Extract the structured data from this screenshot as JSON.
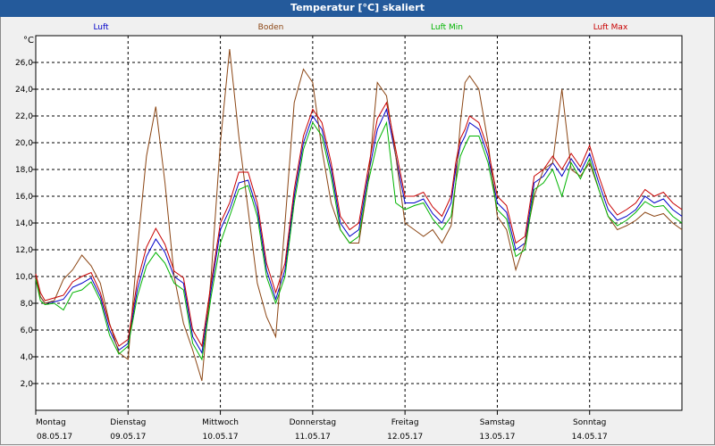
{
  "window": {
    "title": "Temperatur [°C] skaliert"
  },
  "chart_data": {
    "type": "line",
    "title": "Temperatur [°C] skaliert",
    "ylabel": "°C",
    "ylim": [
      0,
      28
    ],
    "yticks": [
      2,
      4,
      6,
      8,
      10,
      12,
      14,
      16,
      18,
      20,
      22,
      24,
      26
    ],
    "ytick_labels": [
      "2,0",
      "4,0",
      "6,0",
      "8,0",
      "10,0",
      "12,0",
      "14,0",
      "16,0",
      "18,0",
      "20,0",
      "22,0",
      "24,0",
      "26,0"
    ],
    "xlim": [
      0,
      7
    ],
    "x_labels": [
      {
        "day": "Montag",
        "date": "08.05.17"
      },
      {
        "day": "Dienstag",
        "date": "09.05.17"
      },
      {
        "day": "Mittwoch",
        "date": "10.05.17"
      },
      {
        "day": "Donnerstag",
        "date": "11.05.17"
      },
      {
        "day": "Freitag",
        "date": "12.05.17"
      },
      {
        "day": "Samstag",
        "date": "13.05.17"
      },
      {
        "day": "Sonntag",
        "date": "14.05.17"
      }
    ],
    "grid": true,
    "legend_position": "top",
    "series": [
      {
        "name": "Luft",
        "color": "#0000c8",
        "x": [
          0,
          0.05,
          0.1,
          0.2,
          0.3,
          0.4,
          0.5,
          0.6,
          0.7,
          0.8,
          0.9,
          1,
          1.1,
          1.2,
          1.3,
          1.4,
          1.5,
          1.6,
          1.7,
          1.8,
          1.9,
          2,
          2.1,
          2.2,
          2.3,
          2.4,
          2.5,
          2.6,
          2.7,
          2.8,
          2.9,
          3,
          3.1,
          3.2,
          3.3,
          3.4,
          3.5,
          3.6,
          3.7,
          3.8,
          3.9,
          4,
          4.1,
          4.2,
          4.3,
          4.4,
          4.5,
          4.55,
          4.6,
          4.65,
          4.7,
          4.8,
          4.9,
          5,
          5.1,
          5.2,
          5.3,
          5.4,
          5.5,
          5.6,
          5.7,
          5.8,
          5.9,
          6,
          6.1,
          6.2,
          6.3,
          6.4,
          6.5,
          6.6,
          6.7,
          6.8,
          6.9,
          7
        ],
        "y": [
          10,
          8.5,
          8,
          8.1,
          8.3,
          9.2,
          9.5,
          9.9,
          8.5,
          6,
          4.5,
          5,
          9,
          11.5,
          12.8,
          11.8,
          10,
          9.5,
          5.5,
          4.3,
          9,
          13.5,
          15,
          17,
          17.2,
          15,
          10.5,
          8.3,
          10.5,
          16,
          20,
          22,
          21,
          18,
          14,
          13,
          13.5,
          17.5,
          21,
          22.5,
          19,
          15.5,
          15.5,
          15.8,
          14.7,
          14,
          15.5,
          18,
          19.8,
          20.5,
          21.5,
          21,
          19,
          15.5,
          14.8,
          12,
          12.5,
          17,
          17.5,
          18.5,
          17.5,
          18.8,
          17.8,
          19.2,
          17,
          15,
          14.2,
          14.5,
          15,
          16,
          15.5,
          15.8,
          15,
          14.5
        ]
      },
      {
        "name": "Boden",
        "color": "#8b4513",
        "x": [
          0,
          0.05,
          0.1,
          0.2,
          0.3,
          0.4,
          0.5,
          0.6,
          0.7,
          0.8,
          0.9,
          1,
          1.1,
          1.2,
          1.3,
          1.4,
          1.5,
          1.6,
          1.7,
          1.8,
          1.9,
          2,
          2.1,
          2.2,
          2.3,
          2.4,
          2.5,
          2.6,
          2.7,
          2.8,
          2.9,
          3,
          3.1,
          3.2,
          3.3,
          3.4,
          3.5,
          3.6,
          3.7,
          3.8,
          3.9,
          4,
          4.1,
          4.2,
          4.3,
          4.4,
          4.5,
          4.55,
          4.6,
          4.65,
          4.7,
          4.8,
          4.9,
          5,
          5.1,
          5.2,
          5.3,
          5.4,
          5.5,
          5.6,
          5.7,
          5.8,
          5.9,
          6,
          6.1,
          6.2,
          6.3,
          6.4,
          6.5,
          6.6,
          6.7,
          6.8,
          6.9,
          7
        ],
        "y": [
          10,
          8.5,
          8,
          8.2,
          9.8,
          10.5,
          11.6,
          10.8,
          9.5,
          6.5,
          4.3,
          3.8,
          12,
          19,
          22.7,
          17,
          10,
          6.5,
          4.5,
          2.2,
          10,
          20,
          27,
          20.5,
          15,
          9.5,
          7,
          5.5,
          14,
          23,
          25.5,
          24.5,
          19.5,
          15.5,
          13.5,
          12.5,
          12.5,
          17,
          24.5,
          23.5,
          19,
          14,
          13.5,
          13,
          13.5,
          12.5,
          13.8,
          17,
          21.5,
          24.5,
          25,
          24,
          20,
          14.5,
          13.5,
          10.5,
          12.5,
          16,
          18,
          18.5,
          24,
          18,
          17.5,
          18.5,
          16.5,
          14.5,
          13.5,
          13.8,
          14.2,
          14.8,
          14.5,
          14.7,
          14,
          13.5
        ]
      },
      {
        "name": "Luft Min",
        "color": "#00b400",
        "x": [
          0,
          0.05,
          0.1,
          0.2,
          0.3,
          0.4,
          0.5,
          0.6,
          0.7,
          0.8,
          0.9,
          1,
          1.1,
          1.2,
          1.3,
          1.4,
          1.5,
          1.6,
          1.7,
          1.8,
          1.9,
          2,
          2.1,
          2.2,
          2.3,
          2.4,
          2.5,
          2.6,
          2.7,
          2.8,
          2.9,
          3,
          3.1,
          3.2,
          3.3,
          3.4,
          3.5,
          3.6,
          3.7,
          3.8,
          3.9,
          4,
          4.1,
          4.2,
          4.3,
          4.4,
          4.5,
          4.55,
          4.6,
          4.65,
          4.7,
          4.8,
          4.9,
          5,
          5.1,
          5.2,
          5.3,
          5.4,
          5.5,
          5.6,
          5.7,
          5.8,
          5.9,
          6,
          6.1,
          6.2,
          6.3,
          6.4,
          6.5,
          6.6,
          6.7,
          6.8,
          6.9,
          7
        ],
        "y": [
          9.8,
          8.2,
          7.9,
          8.0,
          7.5,
          8.8,
          9.0,
          9.6,
          8.2,
          5.6,
          4.2,
          4.8,
          8.5,
          10.8,
          11.8,
          11.0,
          9.5,
          9.0,
          5.0,
          3.8,
          8.5,
          12.5,
          14.5,
          16.5,
          16.8,
          14.5,
          10.0,
          8.0,
          10.0,
          15.5,
          19.5,
          21.5,
          20.5,
          17.5,
          13.5,
          12.5,
          13.0,
          17.0,
          20.0,
          21.5,
          15.5,
          15.0,
          15.3,
          15.5,
          14.3,
          13.5,
          14.5,
          17.0,
          19.0,
          19.8,
          20.5,
          20.5,
          18.5,
          15.0,
          14.3,
          11.5,
          12.0,
          16.5,
          17.0,
          18.0,
          16.0,
          18.5,
          17.3,
          18.8,
          16.5,
          14.5,
          13.8,
          14.2,
          14.8,
          15.6,
          15.2,
          15.3,
          14.5,
          14.0
        ]
      },
      {
        "name": "Luft Max",
        "color": "#c80000",
        "x": [
          0,
          0.05,
          0.1,
          0.2,
          0.3,
          0.4,
          0.5,
          0.6,
          0.7,
          0.8,
          0.9,
          1,
          1.1,
          1.2,
          1.3,
          1.4,
          1.5,
          1.6,
          1.7,
          1.8,
          1.9,
          2,
          2.1,
          2.2,
          2.3,
          2.4,
          2.5,
          2.6,
          2.7,
          2.8,
          2.9,
          3,
          3.1,
          3.2,
          3.3,
          3.4,
          3.5,
          3.6,
          3.7,
          3.8,
          3.9,
          4,
          4.1,
          4.2,
          4.3,
          4.4,
          4.5,
          4.55,
          4.6,
          4.65,
          4.7,
          4.8,
          4.9,
          5,
          5.1,
          5.2,
          5.3,
          5.4,
          5.5,
          5.6,
          5.7,
          5.8,
          5.9,
          6,
          6.1,
          6.2,
          6.3,
          6.4,
          6.5,
          6.6,
          6.7,
          6.8,
          6.9,
          7
        ],
        "y": [
          10.2,
          8.8,
          8.2,
          8.4,
          8.6,
          9.6,
          10.0,
          10.3,
          8.8,
          6.4,
          4.8,
          5.3,
          9.6,
          12.2,
          13.6,
          12.4,
          10.4,
          9.9,
          6.0,
          4.8,
          9.5,
          14.0,
          15.5,
          17.8,
          17.8,
          15.5,
          11.0,
          8.8,
          11.0,
          16.5,
          20.5,
          22.5,
          21.5,
          18.5,
          14.5,
          13.5,
          14.0,
          18.0,
          21.8,
          23.0,
          19.5,
          16.0,
          16.0,
          16.3,
          15.2,
          14.5,
          16.0,
          18.5,
          20.3,
          21.0,
          22.0,
          21.5,
          19.5,
          16.0,
          15.3,
          12.5,
          13.0,
          17.5,
          18.0,
          19.0,
          18.0,
          19.2,
          18.2,
          19.8,
          17.5,
          15.5,
          14.6,
          15.0,
          15.5,
          16.5,
          16.0,
          16.3,
          15.5,
          15.0
        ]
      }
    ]
  }
}
